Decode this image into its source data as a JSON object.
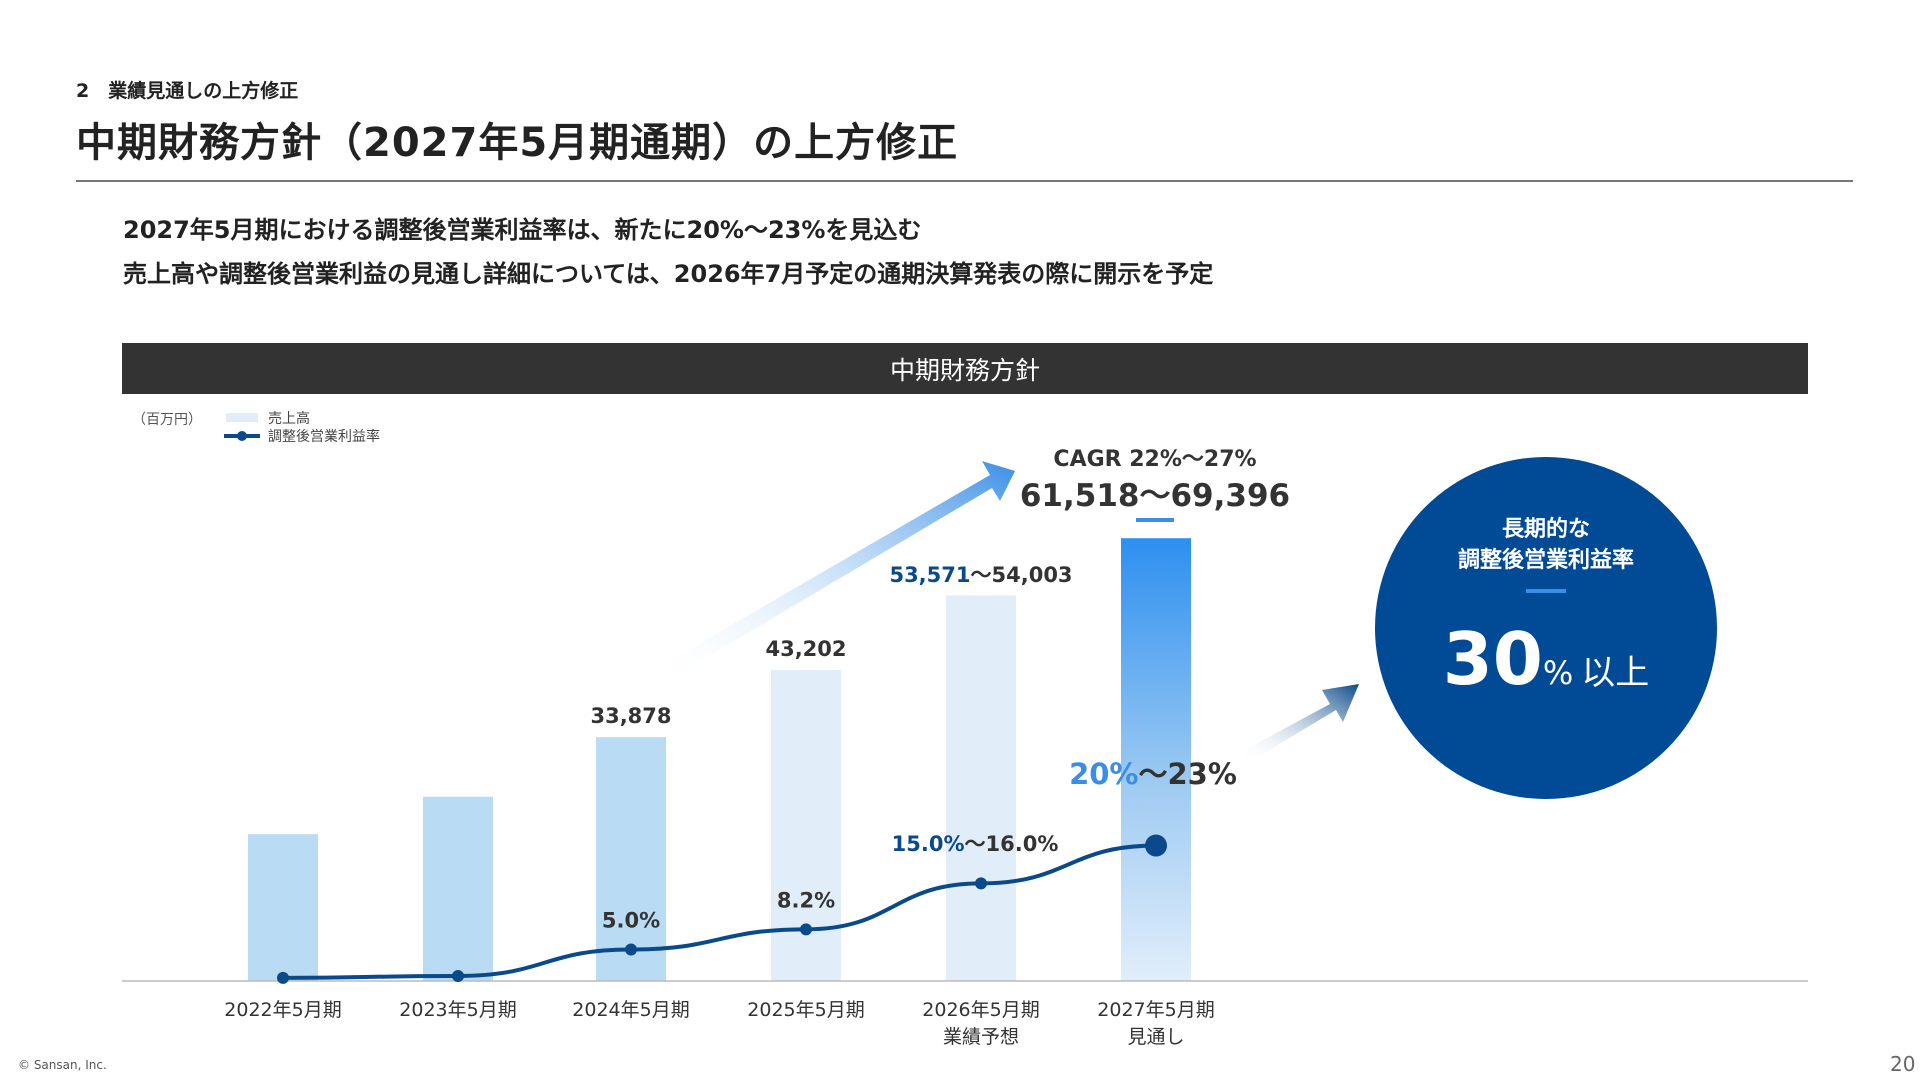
{
  "header": {
    "section": "2　業績見通しの上方修正",
    "title": "中期財務方針（2027年5月期通期）の上方修正"
  },
  "bullets": [
    "2027年5月期における調整後営業利益率は、新たに20%〜23%を見込む",
    "売上高や調整後営業利益の見通し詳細については、2026年7月予定の通期決算発表の際に開示を予定"
  ],
  "banner": "中期財務方針",
  "colors": {
    "bar_actual": "#b9dbf3",
    "bar_forecast": "#e1eefa",
    "line": "#0a4a8a",
    "accent": "#3a8ee6",
    "circle": "#004a96"
  },
  "chart_data": {
    "type": "bar+line",
    "unit_label": "（百万円）",
    "categories": [
      "2022年5月期",
      "2023年5月期",
      "2024年5月期",
      "2025年5月期",
      "2026年5月期\n業績予想",
      "2027年5月期\n見通し"
    ],
    "category_lines": [
      [
        "2022年5月期"
      ],
      [
        "2023年5月期"
      ],
      [
        "2024年5月期"
      ],
      [
        "2025年5月期"
      ],
      [
        "2026年5月期",
        "業績予想"
      ],
      [
        "2027年5月期",
        "見通し"
      ]
    ],
    "series": [
      {
        "name": "売上高",
        "type": "bar",
        "values": [
          20400,
          25600,
          33878,
          43202,
          [
            53571,
            54003
          ],
          [
            61518,
            69396
          ]
        ],
        "labels": [
          "",
          "",
          "33,878",
          "43,202",
          "53,571〜54,003",
          "61,518〜69,396"
        ]
      },
      {
        "name": "調整後営業利益率",
        "type": "line",
        "values": [
          0.5,
          0.8,
          5.0,
          8.2,
          [
            15.0,
            16.0
          ],
          [
            20,
            23
          ]
        ],
        "labels": [
          "",
          "",
          "5.0%",
          "8.2%",
          "15.0%〜16.0%",
          "20%〜23%"
        ]
      }
    ],
    "label_parts": {
      "rev_2026_low": "53,571",
      "rev_2026_high": "〜54,003",
      "margin_2026_low": "15.0%",
      "margin_2026_high": "〜16.0%",
      "margin_2027_low": "20%",
      "margin_2027_high": "〜23%"
    },
    "cagr": "CAGR 22%〜27%",
    "legend_placement": "top-left"
  },
  "circle": {
    "line1": "長期的な",
    "line2": "調整後営業利益率",
    "value": "30",
    "unit": "%",
    "suffix": "以上"
  },
  "footer": {
    "copyright": "© Sansan, Inc.",
    "page": "20"
  }
}
